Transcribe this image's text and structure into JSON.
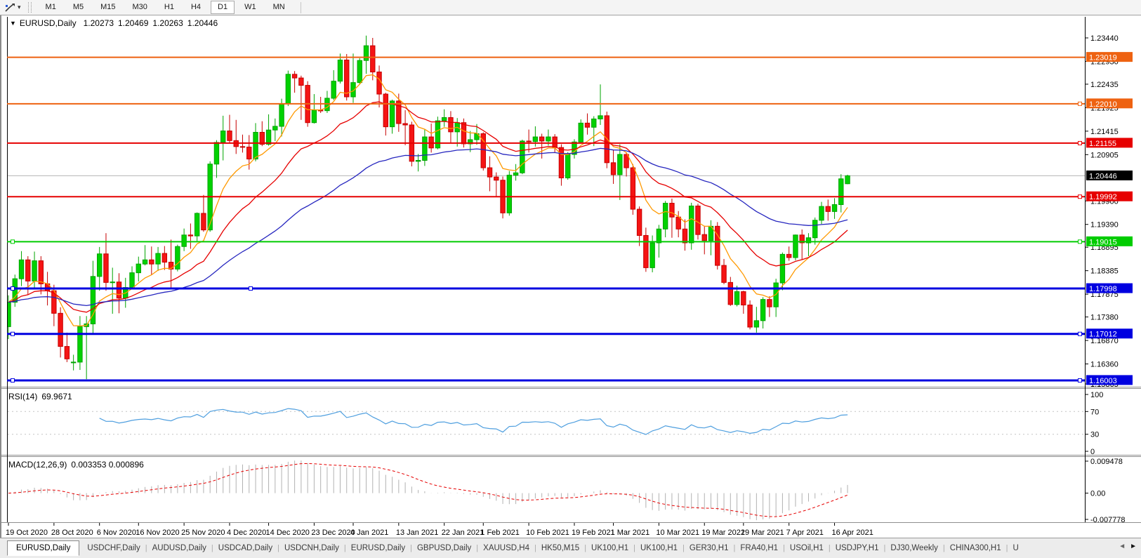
{
  "toolbar": {
    "timeframes": [
      "M1",
      "M5",
      "M15",
      "M30",
      "H1",
      "H4",
      "D1",
      "W1",
      "MN"
    ],
    "active": "D1",
    "dropdown_caret": "▾"
  },
  "chart_header": {
    "caret": "▼",
    "symbol": "EURUSD,Daily",
    "open": "1.20273",
    "high": "1.20469",
    "low": "1.20263",
    "close": "1.20446"
  },
  "price_axis": {
    "ticks": [
      "1.23440",
      "1.22930",
      "1.22435",
      "1.21925",
      "1.21415",
      "1.20905",
      "1.19900",
      "1.19390",
      "1.18895",
      "1.18385",
      "1.17875",
      "1.17380",
      "1.16870",
      "1.16360",
      "1.15865"
    ]
  },
  "date_axis": {
    "labels": [
      {
        "text": "19 Oct 2020",
        "index": 0
      },
      {
        "text": "28 Oct 2020",
        "index": 7
      },
      {
        "text": "6 Nov 2020",
        "index": 14
      },
      {
        "text": "16 Nov 2020",
        "index": 20
      },
      {
        "text": "25 Nov 2020",
        "index": 27
      },
      {
        "text": "4 Dec 2020",
        "index": 34
      },
      {
        "text": "14 Dec 2020",
        "index": 40
      },
      {
        "text": "23 Dec 2020",
        "index": 47
      },
      {
        "text": "4 Jan 2021",
        "index": 53
      },
      {
        "text": "13 Jan 2021",
        "index": 60
      },
      {
        "text": "22 Jan 2021",
        "index": 67
      },
      {
        "text": "1 Feb 2021",
        "index": 73
      },
      {
        "text": "10 Feb 2021",
        "index": 80
      },
      {
        "text": "19 Feb 2021",
        "index": 87
      },
      {
        "text": "1 Mar 2021",
        "index": 93
      },
      {
        "text": "10 Mar 2021",
        "index": 100
      },
      {
        "text": "19 Mar 2021",
        "index": 107
      },
      {
        "text": "29 Mar 2021",
        "index": 113
      },
      {
        "text": "7 Apr 2021",
        "index": 120
      },
      {
        "text": "16 Apr 2021",
        "index": 127
      }
    ]
  },
  "chart_data": {
    "type": "candlestick",
    "symbol": "EURUSD",
    "timeframe": "Daily",
    "ohlc_current": {
      "open": 1.20273,
      "high": 1.20469,
      "low": 1.20263,
      "close": 1.20446
    },
    "y_ticks": [
      1.2344,
      1.2293,
      1.22435,
      1.21925,
      1.21415,
      1.20905,
      1.199,
      1.1939,
      1.18895,
      1.18385,
      1.17875,
      1.1738,
      1.1687,
      1.1636,
      1.15865
    ],
    "up_color": "#00d200",
    "up_stroke": "#00a400",
    "down_color": "#f51414",
    "down_stroke": "#c60000",
    "candles": [
      [
        1.1717,
        1.1785,
        1.169,
        1.177
      ],
      [
        1.177,
        1.183,
        1.176,
        1.1821
      ],
      [
        1.1821,
        1.1881,
        1.1805,
        1.1862
      ],
      [
        1.1862,
        1.187,
        1.1786,
        1.1816
      ],
      [
        1.1816,
        1.188,
        1.18,
        1.186
      ],
      [
        1.186,
        1.187,
        1.1787,
        1.181
      ],
      [
        1.181,
        1.1836,
        1.1763,
        1.1795
      ],
      [
        1.1795,
        1.1808,
        1.1718,
        1.1746
      ],
      [
        1.1746,
        1.1759,
        1.165,
        1.1674
      ],
      [
        1.1674,
        1.1704,
        1.164,
        1.1647
      ],
      [
        1.164,
        1.1656,
        1.1622,
        1.164
      ],
      [
        1.164,
        1.174,
        1.1623,
        1.1717
      ],
      [
        1.1717,
        1.174,
        1.1603,
        1.1723
      ],
      [
        1.1723,
        1.186,
        1.1702,
        1.1826
      ],
      [
        1.1826,
        1.189,
        1.1795,
        1.1875
      ],
      [
        1.1875,
        1.192,
        1.1795,
        1.1813
      ],
      [
        1.1813,
        1.1845,
        1.1745,
        1.1814
      ],
      [
        1.1814,
        1.1833,
        1.1746,
        1.1779
      ],
      [
        1.1779,
        1.1823,
        1.1758,
        1.1802
      ],
      [
        1.1802,
        1.1848,
        1.1799,
        1.1834
      ],
      [
        1.1834,
        1.1869,
        1.1815,
        1.1853
      ],
      [
        1.1853,
        1.1894,
        1.185,
        1.1862
      ],
      [
        1.1862,
        1.1891,
        1.1829,
        1.1853
      ],
      [
        1.1853,
        1.189,
        1.1838,
        1.1876
      ],
      [
        1.1876,
        1.1892,
        1.184,
        1.1857
      ],
      [
        1.1857,
        1.1906,
        1.18,
        1.1842
      ],
      [
        1.1842,
        1.1895,
        1.1837,
        1.1891
      ],
      [
        1.1891,
        1.193,
        1.1881,
        1.1916
      ],
      [
        1.1916,
        1.1941,
        1.1886,
        1.1914
      ],
      [
        1.1914,
        1.1965,
        1.1903,
        1.1963
      ],
      [
        1.1963,
        1.2003,
        1.1923,
        1.1927
      ],
      [
        1.1927,
        1.2076,
        1.1923,
        1.207
      ],
      [
        1.207,
        1.2122,
        1.204,
        1.2117
      ],
      [
        1.2117,
        1.2175,
        1.2078,
        1.2142
      ],
      [
        1.2142,
        1.2177,
        1.2115,
        1.2121
      ],
      [
        1.2121,
        1.2166,
        1.2092,
        1.2108
      ],
      [
        1.2108,
        1.2134,
        1.2095,
        1.2107
      ],
      [
        1.2107,
        1.2133,
        1.2058,
        1.2081
      ],
      [
        1.2081,
        1.2159,
        1.2076,
        1.2139
      ],
      [
        1.2139,
        1.2163,
        1.2109,
        1.2113
      ],
      [
        1.2113,
        1.2178,
        1.211,
        1.2144
      ],
      [
        1.2144,
        1.2169,
        1.212,
        1.2152
      ],
      [
        1.2152,
        1.2212,
        1.213,
        1.2201
      ],
      [
        1.2201,
        1.2273,
        1.2196,
        1.2265
      ],
      [
        1.2265,
        1.2272,
        1.2225,
        1.2257
      ],
      [
        1.2257,
        1.2262,
        1.2166,
        1.2241
      ],
      [
        1.2241,
        1.225,
        1.2151,
        1.216
      ],
      [
        1.216,
        1.2222,
        1.2158,
        1.2187
      ],
      [
        1.2187,
        1.2216,
        1.2181,
        1.2186
      ],
      [
        1.2186,
        1.2229,
        1.2181,
        1.2213
      ],
      [
        1.2213,
        1.2274,
        1.2209,
        1.225
      ],
      [
        1.225,
        1.231,
        1.2245,
        1.2296
      ],
      [
        1.2296,
        1.2309,
        1.2208,
        1.2216
      ],
      [
        1.2216,
        1.231,
        1.2203,
        1.2247
      ],
      [
        1.2247,
        1.23,
        1.2244,
        1.2295
      ],
      [
        1.2295,
        1.2349,
        1.2266,
        1.2327
      ],
      [
        1.2327,
        1.2344,
        1.2252,
        1.227
      ],
      [
        1.227,
        1.2284,
        1.2193,
        1.2222
      ],
      [
        1.2222,
        1.2225,
        1.2132,
        1.2151
      ],
      [
        1.2151,
        1.221,
        1.2136,
        1.2207
      ],
      [
        1.2207,
        1.2223,
        1.214,
        1.2158
      ],
      [
        1.2158,
        1.2187,
        1.2111,
        1.2155
      ],
      [
        1.2155,
        1.2162,
        1.2065,
        1.2076
      ],
      [
        1.2076,
        1.2092,
        1.2054,
        1.2078
      ],
      [
        1.2078,
        1.2145,
        1.2066,
        1.2129
      ],
      [
        1.2129,
        1.2158,
        1.2095,
        1.2105
      ],
      [
        1.2105,
        1.2173,
        1.2102,
        1.2164
      ],
      [
        1.2164,
        1.2189,
        1.2151,
        1.2171
      ],
      [
        1.2171,
        1.2185,
        1.2116,
        1.214
      ],
      [
        1.214,
        1.217,
        1.2108,
        1.216
      ],
      [
        1.216,
        1.2169,
        1.2106,
        1.2114
      ],
      [
        1.2114,
        1.2142,
        1.2096,
        1.2123
      ],
      [
        1.2123,
        1.2157,
        1.2112,
        1.2136
      ],
      [
        1.2136,
        1.2139,
        1.2056,
        1.2062
      ],
      [
        1.2062,
        1.2087,
        1.2011,
        1.2042
      ],
      [
        1.2042,
        1.2052,
        1.1999,
        1.2035
      ],
      [
        1.2035,
        1.2043,
        1.1952,
        1.1964
      ],
      [
        1.1964,
        1.2055,
        1.1958,
        1.2046
      ],
      [
        1.2046,
        1.207,
        1.2034,
        1.2051
      ],
      [
        1.2051,
        1.2123,
        1.2048,
        1.212
      ],
      [
        1.212,
        1.2145,
        1.2095,
        1.2119
      ],
      [
        1.2119,
        1.2152,
        1.2108,
        1.2129
      ],
      [
        1.2129,
        1.2136,
        1.2082,
        1.212
      ],
      [
        1.212,
        1.2145,
        1.211,
        1.2129
      ],
      [
        1.2129,
        1.2135,
        1.2094,
        1.2106
      ],
      [
        1.2106,
        1.2113,
        1.2023,
        1.204
      ],
      [
        1.204,
        1.2096,
        1.2036,
        1.2091
      ],
      [
        1.2091,
        1.2124,
        1.2082,
        1.2118
      ],
      [
        1.2118,
        1.2167,
        1.2116,
        1.2159
      ],
      [
        1.2159,
        1.218,
        1.2134,
        1.215
      ],
      [
        1.215,
        1.2174,
        1.2109,
        1.2168
      ],
      [
        1.2168,
        1.2243,
        1.2155,
        1.2175
      ],
      [
        1.2175,
        1.2184,
        1.2061,
        1.2073
      ],
      [
        1.2073,
        1.2101,
        1.2027,
        1.2047
      ],
      [
        1.2047,
        1.2113,
        1.1992,
        1.2091
      ],
      [
        1.2091,
        1.2095,
        1.2043,
        1.2062
      ],
      [
        1.2062,
        1.207,
        1.196,
        1.1972
      ],
      [
        1.1972,
        1.1978,
        1.1892,
        1.1915
      ],
      [
        1.1915,
        1.1932,
        1.1836,
        1.1845
      ],
      [
        1.1845,
        1.1915,
        1.1835,
        1.1899
      ],
      [
        1.1899,
        1.1938,
        1.1867,
        1.1929
      ],
      [
        1.1929,
        1.199,
        1.1911,
        1.1985
      ],
      [
        1.1985,
        1.1995,
        1.191,
        1.1955
      ],
      [
        1.1955,
        1.1968,
        1.1911,
        1.1929
      ],
      [
        1.1929,
        1.195,
        1.1882,
        1.1899
      ],
      [
        1.1899,
        1.1986,
        1.1884,
        1.1979
      ],
      [
        1.1979,
        1.1984,
        1.1906,
        1.1917
      ],
      [
        1.1917,
        1.1936,
        1.1874,
        1.1904
      ],
      [
        1.1904,
        1.1948,
        1.1872,
        1.1935
      ],
      [
        1.1935,
        1.1944,
        1.1841,
        1.185
      ],
      [
        1.185,
        1.1864,
        1.1809,
        1.1813
      ],
      [
        1.1813,
        1.1825,
        1.1762,
        1.1765
      ],
      [
        1.1765,
        1.1806,
        1.1761,
        1.1793
      ],
      [
        1.1793,
        1.1795,
        1.1745,
        1.1764
      ],
      [
        1.1764,
        1.1774,
        1.1711,
        1.1716
      ],
      [
        1.1716,
        1.176,
        1.1704,
        1.173
      ],
      [
        1.173,
        1.1781,
        1.1713,
        1.1776
      ],
      [
        1.1776,
        1.1783,
        1.1738,
        1.176
      ],
      [
        1.176,
        1.1821,
        1.1738,
        1.1812
      ],
      [
        1.1812,
        1.1878,
        1.1796,
        1.1874
      ],
      [
        1.1874,
        1.1891,
        1.186,
        1.1867
      ],
      [
        1.1867,
        1.1917,
        1.1861,
        1.1916
      ],
      [
        1.1916,
        1.1928,
        1.1862,
        1.1899
      ],
      [
        1.1899,
        1.192,
        1.187,
        1.191
      ],
      [
        1.191,
        1.1954,
        1.1895,
        1.1948
      ],
      [
        1.1948,
        1.1988,
        1.194,
        1.1978
      ],
      [
        1.1978,
        1.1993,
        1.1947,
        1.1967
      ],
      [
        1.1967,
        1.1996,
        1.1951,
        1.1982
      ],
      [
        1.1982,
        1.2048,
        1.1965,
        1.2038
      ],
      [
        1.20273,
        1.20469,
        1.20263,
        1.20446
      ]
    ],
    "moving_averages": [
      {
        "name": "ma-fast",
        "period": 8,
        "method": "ema",
        "color": "#ff9900"
      },
      {
        "name": "ma-mid",
        "period": 20,
        "method": "ema",
        "color": "#e60000"
      },
      {
        "name": "ma-slow",
        "period": 50,
        "method": "ema",
        "color": "#2626bf"
      }
    ],
    "horizontal_lines": [
      {
        "price": 1.23019,
        "label": "1.23019",
        "color": "#ee6211",
        "width": 2,
        "handles": []
      },
      {
        "price": 1.2201,
        "label": "1.22010",
        "color": "#ee6211",
        "width": 2,
        "handles": [
          "right"
        ]
      },
      {
        "price": 1.21155,
        "label": "1.21155",
        "color": "#e60000",
        "width": 2,
        "handles": [
          "right"
        ]
      },
      {
        "price": 1.19992,
        "label": "1.19992",
        "color": "#e60000",
        "width": 2,
        "handles": [
          "right"
        ]
      },
      {
        "price": 1.19015,
        "label": "1.19015",
        "color": "#00cc00",
        "width": 2,
        "handles": [
          "left",
          "right"
        ]
      },
      {
        "price": 1.17998,
        "label": "1.17998",
        "color": "#0000e0",
        "width": 3,
        "handles": [
          "left",
          "mid"
        ]
      },
      {
        "price": 1.17012,
        "label": "1.17012",
        "color": "#0000e0",
        "width": 3,
        "handles": [
          "left",
          "right"
        ]
      },
      {
        "price": 1.16003,
        "label": "1.16003",
        "color": "#0000e0",
        "width": 3,
        "handles": [
          "left",
          "right"
        ]
      }
    ],
    "current_price": {
      "price": 1.20446,
      "label": "1.20446",
      "line_color": "#b4b4b4",
      "label_bg": "#000000"
    },
    "indicators": [
      {
        "type": "RSI",
        "label": "RSI(14)",
        "value": "69.9671",
        "period": 14,
        "levels": [
          70,
          30
        ],
        "axis_ticks": [
          "100",
          "70",
          "30",
          "0"
        ],
        "axis_tick_values": [
          100,
          70,
          30,
          0
        ],
        "line_color": "#4f9fdf",
        "level_color": "#c4c4c4"
      },
      {
        "type": "MACD",
        "label": "MACD(12,26,9)",
        "values": "0.003353 0.000896",
        "fast": 12,
        "slow": 26,
        "signal": 9,
        "axis_ticks": [
          "0.009478",
          "0.00",
          "-0.007778"
        ],
        "axis_tick_values": [
          0.009478,
          0,
          -0.007778
        ],
        "histogram_color": "#b2b2b2",
        "signal_color": "#e60000"
      }
    ]
  },
  "tabs": {
    "items": [
      {
        "label": "EURUSD,Daily",
        "active": true
      },
      {
        "label": "USDCHF,Daily",
        "active": false
      },
      {
        "label": "AUDUSD,Daily",
        "active": false
      },
      {
        "label": "USDCAD,Daily",
        "active": false
      },
      {
        "label": "USDCNH,Daily",
        "active": false
      },
      {
        "label": "EURUSD,Daily",
        "active": false
      },
      {
        "label": "GBPUSD,Daily",
        "active": false
      },
      {
        "label": "XAUUSD,H4",
        "active": false
      },
      {
        "label": "HK50,M15",
        "active": false
      },
      {
        "label": "UK100,H1",
        "active": false
      },
      {
        "label": "UK100,H1",
        "active": false
      },
      {
        "label": "GER30,H1",
        "active": false
      },
      {
        "label": "FRA40,H1",
        "active": false
      },
      {
        "label": "USOil,H1",
        "active": false
      },
      {
        "label": "USDJPY,H1",
        "active": false
      },
      {
        "label": "DJ30,Weekly",
        "active": false
      },
      {
        "label": "CHINA300,H1",
        "active": false
      },
      {
        "label": "U",
        "active": false
      }
    ],
    "scroll_left": "◄",
    "scroll_right": "►"
  }
}
